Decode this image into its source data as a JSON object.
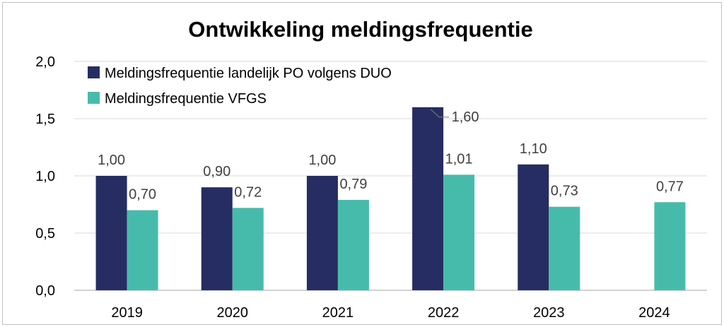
{
  "chart_data": {
    "type": "bar",
    "title": "Ontwikkeling meldingsfrequentie",
    "categories": [
      "2019",
      "2020",
      "2021",
      "2022",
      "2023",
      "2024"
    ],
    "series": [
      {
        "name": "Meldingsfrequentie landelijk PO volgens DUO",
        "values": [
          1.0,
          0.9,
          1.0,
          1.6,
          1.1,
          null
        ],
        "labels": [
          "1,00",
          "0,90",
          "1,00",
          "1,60",
          "1,10",
          ""
        ],
        "color": "#262d62"
      },
      {
        "name": "Meldingsfrequentie VFGS",
        "values": [
          0.7,
          0.72,
          0.79,
          1.01,
          0.73,
          0.77
        ],
        "labels": [
          "0,70",
          "0,72",
          "0,79",
          "1,01",
          "0,73",
          "0,77"
        ],
        "color": "#47bbab"
      }
    ],
    "ylim": [
      0,
      2.0
    ],
    "yticks": [
      "0,0",
      "0,5",
      "1,0",
      "1,5",
      "2,0"
    ],
    "grid": true,
    "legend": "top-left"
  }
}
